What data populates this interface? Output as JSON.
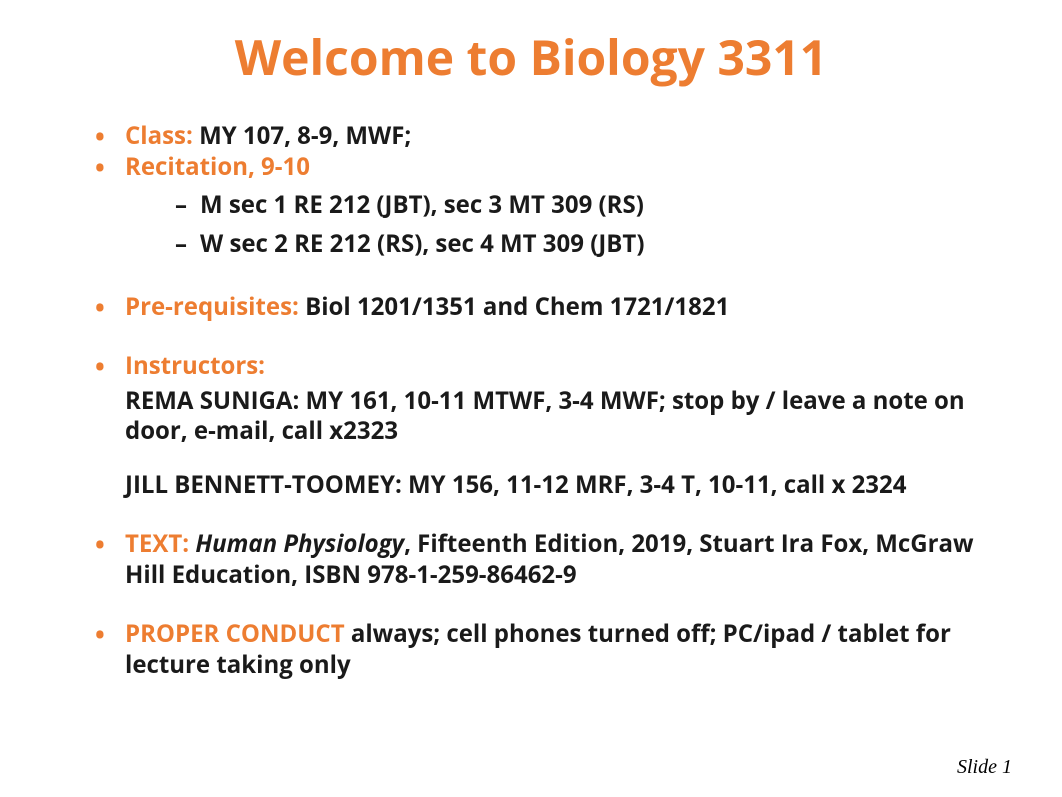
{
  "title": "Welcome to Biology 3311",
  "class_label": "Class:",
  "class_value": "  MY 107, 8-9, MWF;",
  "recitation_label": "Recitation, 9-10",
  "recitation_sub": [
    "M  sec 1  RE 212 (JBT),  sec 3  MT 309 (RS)",
    "W sec 2  RE 212 (RS), sec 4 MT 309 (JBT)"
  ],
  "prereq_label": "Pre-requisites:",
  "prereq_value": "  Biol 1201/1351 and Chem 1721/1821",
  "instructors_label": "Instructors:",
  "instructor1": "REMA SUNIGA: MY 161, 10-11 MTWF, 3-4 MWF; stop by / leave a note on door, e-mail, call x2323",
  "instructor2": "JILL BENNETT-TOOMEY: MY 156, 11-12 MRF, 3-4 T, 10-11, call x 2324",
  "text_label": "TEXT:",
  "text_book_title": "Human Physiology",
  "text_rest": ", Fifteenth Edition, 2019, Stuart Ira Fox, McGraw Hill Education, ISBN 978-1-259-86462-9",
  "conduct_label": "PROPER CONDUCT",
  "conduct_rest": " always;  cell phones turned off; PC/ipad / tablet for lecture taking only",
  "slide_num": "Slide 1",
  "colors": {
    "accent": "#ed7d31",
    "text": "#1a1a1a",
    "bg": "#ffffff"
  }
}
